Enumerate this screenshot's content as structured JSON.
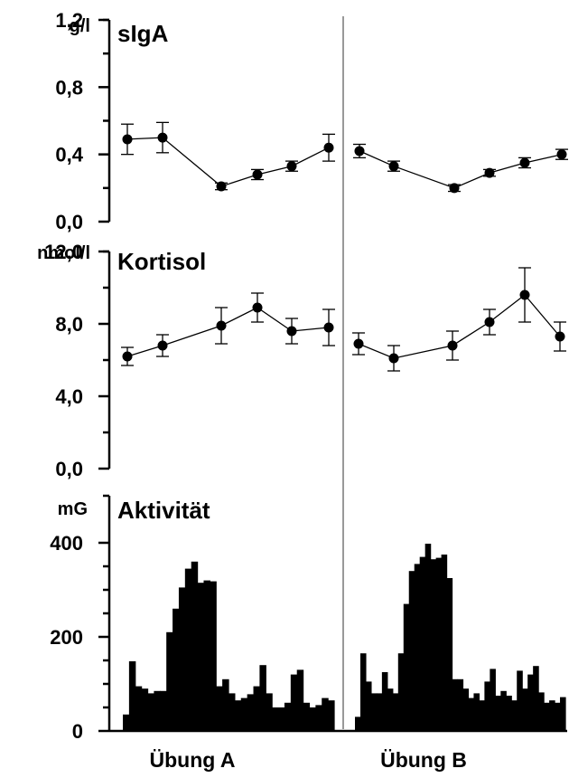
{
  "chart_data": [
    {
      "type": "line",
      "title": "sIgA",
      "unit": "g/l",
      "yticks": [
        "0,0",
        "0,4",
        "0,8",
        "1,2"
      ],
      "ylim": [
        0,
        1.2
      ],
      "series": [
        {
          "session": "Übung A",
          "values": [
            0.49,
            0.5,
            0.21,
            0.28,
            0.33,
            0.44
          ],
          "errors": [
            0.09,
            0.09,
            0.02,
            0.03,
            0.03,
            0.08
          ]
        },
        {
          "session": "Übung B",
          "values": [
            0.42,
            0.33,
            0.2,
            0.29,
            0.35,
            0.4
          ],
          "errors": [
            0.04,
            0.03,
            0.02,
            0.02,
            0.03,
            0.03
          ]
        }
      ]
    },
    {
      "type": "line",
      "title": "Kortisol",
      "unit": "nmol/l",
      "yticks": [
        "0,0",
        "4,0",
        "8,0",
        "12,0"
      ],
      "ylim": [
        0,
        12
      ],
      "series": [
        {
          "session": "Übung A",
          "values": [
            6.2,
            6.8,
            7.9,
            8.9,
            7.6,
            7.8
          ],
          "errors": [
            0.5,
            0.6,
            1.0,
            0.8,
            0.7,
            1.0
          ]
        },
        {
          "session": "Übung B",
          "values": [
            6.9,
            6.1,
            6.8,
            8.1,
            9.6,
            7.3
          ],
          "errors": [
            0.6,
            0.7,
            0.8,
            0.7,
            1.5,
            0.8
          ]
        }
      ]
    },
    {
      "type": "bar",
      "title": "Aktivität",
      "unit": "mG",
      "yticks": [
        "0",
        "200",
        "400"
      ],
      "ylim": [
        0,
        400
      ],
      "series": [
        {
          "session": "Übung A",
          "values": [
            35,
            148,
            95,
            90,
            80,
            85,
            85,
            210,
            260,
            305,
            345,
            360,
            315,
            320,
            318,
            95,
            110,
            80,
            65,
            70,
            78,
            95,
            140,
            80,
            50,
            50,
            60,
            120,
            130,
            60,
            50,
            55,
            70,
            65
          ]
        },
        {
          "session": "Übung B",
          "values": [
            30,
            165,
            105,
            80,
            80,
            125,
            90,
            80,
            165,
            270,
            340,
            355,
            370,
            398,
            365,
            368,
            375,
            325,
            110,
            110,
            90,
            70,
            80,
            65,
            105,
            132,
            75,
            85,
            75,
            65,
            128,
            90,
            120,
            138,
            82,
            60,
            65,
            60,
            72
          ]
        }
      ]
    }
  ],
  "xlabels": [
    "Übung A",
    "Übung B"
  ]
}
